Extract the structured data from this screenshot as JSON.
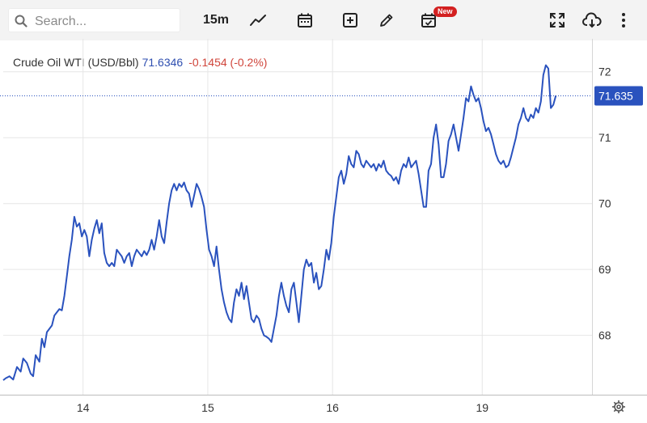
{
  "toolbar": {
    "search_placeholder": "Search...",
    "interval": "15m",
    "new_badge": "New",
    "icons": [
      "search-icon",
      "line-chart-icon",
      "calendar-icon",
      "plus-box-icon",
      "pencil-icon",
      "calendar-check-icon",
      "fullscreen-icon",
      "cloud-download-icon",
      "more-vertical-icon",
      "gear-icon"
    ]
  },
  "legend": {
    "symbol": "Crude Oil WTI (USD/Bbl)",
    "value": "71.6346",
    "change": "-0.1454 (-0.2%)"
  },
  "colors": {
    "line": "#2a52be",
    "label_bg": "#2a52be",
    "change": "#d0453b",
    "grid": "#e6e6e6"
  },
  "chart_data": {
    "type": "line",
    "x_ticks": [
      {
        "label": "14",
        "x": 1.0
      },
      {
        "label": "15",
        "x": 2.0
      },
      {
        "label": "16",
        "x": 3.0
      },
      {
        "label": "19",
        "x": 4.2
      }
    ],
    "y_ticks": [
      68,
      69,
      70,
      71,
      72
    ],
    "ylim": [
      67.1,
      72.5
    ],
    "xlim": [
      0.36,
      5.08
    ],
    "last_value_label": "71.635",
    "last_value": 71.635,
    "series": [
      {
        "points": [
          [
            0.36,
            67.32
          ],
          [
            0.38,
            67.35
          ],
          [
            0.41,
            67.38
          ],
          [
            0.44,
            67.33
          ],
          [
            0.47,
            67.52
          ],
          [
            0.5,
            67.45
          ],
          [
            0.52,
            67.65
          ],
          [
            0.55,
            67.58
          ],
          [
            0.58,
            67.42
          ],
          [
            0.6,
            67.38
          ],
          [
            0.62,
            67.7
          ],
          [
            0.65,
            67.6
          ],
          [
            0.67,
            67.95
          ],
          [
            0.69,
            67.82
          ],
          [
            0.71,
            68.05
          ],
          [
            0.73,
            68.1
          ],
          [
            0.75,
            68.15
          ],
          [
            0.77,
            68.3
          ],
          [
            0.79,
            68.35
          ],
          [
            0.81,
            68.4
          ],
          [
            0.83,
            68.38
          ],
          [
            0.85,
            68.6
          ],
          [
            0.87,
            68.9
          ],
          [
            0.89,
            69.2
          ],
          [
            0.91,
            69.45
          ],
          [
            0.93,
            69.8
          ],
          [
            0.95,
            69.65
          ],
          [
            0.97,
            69.7
          ],
          [
            0.99,
            69.5
          ],
          [
            1.01,
            69.6
          ],
          [
            1.03,
            69.5
          ],
          [
            1.05,
            69.2
          ],
          [
            1.07,
            69.45
          ],
          [
            1.09,
            69.62
          ],
          [
            1.11,
            69.75
          ],
          [
            1.13,
            69.55
          ],
          [
            1.15,
            69.7
          ],
          [
            1.17,
            69.25
          ],
          [
            1.19,
            69.1
          ],
          [
            1.21,
            69.05
          ],
          [
            1.23,
            69.1
          ],
          [
            1.25,
            69.05
          ],
          [
            1.27,
            69.3
          ],
          [
            1.29,
            69.25
          ],
          [
            1.31,
            69.2
          ],
          [
            1.33,
            69.1
          ],
          [
            1.35,
            69.2
          ],
          [
            1.37,
            69.25
          ],
          [
            1.39,
            69.05
          ],
          [
            1.41,
            69.2
          ],
          [
            1.43,
            69.3
          ],
          [
            1.45,
            69.25
          ],
          [
            1.47,
            69.2
          ],
          [
            1.49,
            69.28
          ],
          [
            1.51,
            69.22
          ],
          [
            1.53,
            69.3
          ],
          [
            1.55,
            69.45
          ],
          [
            1.57,
            69.3
          ],
          [
            1.59,
            69.5
          ],
          [
            1.61,
            69.75
          ],
          [
            1.63,
            69.5
          ],
          [
            1.65,
            69.4
          ],
          [
            1.67,
            69.72
          ],
          [
            1.69,
            70.0
          ],
          [
            1.71,
            70.2
          ],
          [
            1.73,
            70.3
          ],
          [
            1.75,
            70.2
          ],
          [
            1.77,
            70.3
          ],
          [
            1.79,
            70.25
          ],
          [
            1.81,
            70.32
          ],
          [
            1.83,
            70.2
          ],
          [
            1.85,
            70.15
          ],
          [
            1.87,
            69.95
          ],
          [
            1.89,
            70.12
          ],
          [
            1.91,
            70.3
          ],
          [
            1.93,
            70.22
          ],
          [
            1.95,
            70.1
          ],
          [
            1.97,
            69.95
          ],
          [
            1.99,
            69.6
          ],
          [
            2.01,
            69.3
          ],
          [
            2.03,
            69.2
          ],
          [
            2.05,
            69.05
          ],
          [
            2.07,
            69.35
          ],
          [
            2.09,
            69.0
          ],
          [
            2.11,
            68.7
          ],
          [
            2.13,
            68.5
          ],
          [
            2.15,
            68.35
          ],
          [
            2.17,
            68.25
          ],
          [
            2.19,
            68.2
          ],
          [
            2.21,
            68.5
          ],
          [
            2.23,
            68.7
          ],
          [
            2.25,
            68.6
          ],
          [
            2.27,
            68.8
          ],
          [
            2.29,
            68.55
          ],
          [
            2.31,
            68.75
          ],
          [
            2.33,
            68.5
          ],
          [
            2.35,
            68.25
          ],
          [
            2.37,
            68.2
          ],
          [
            2.39,
            68.3
          ],
          [
            2.41,
            68.25
          ],
          [
            2.43,
            68.1
          ],
          [
            2.45,
            68.0
          ],
          [
            2.47,
            67.98
          ],
          [
            2.49,
            67.95
          ],
          [
            2.51,
            67.9
          ],
          [
            2.53,
            68.1
          ],
          [
            2.55,
            68.3
          ],
          [
            2.57,
            68.6
          ],
          [
            2.59,
            68.8
          ],
          [
            2.61,
            68.6
          ],
          [
            2.63,
            68.45
          ],
          [
            2.65,
            68.35
          ],
          [
            2.67,
            68.7
          ],
          [
            2.69,
            68.8
          ],
          [
            2.71,
            68.5
          ],
          [
            2.73,
            68.2
          ],
          [
            2.75,
            68.6
          ],
          [
            2.77,
            69.0
          ],
          [
            2.79,
            69.15
          ],
          [
            2.81,
            69.05
          ],
          [
            2.83,
            69.1
          ],
          [
            2.85,
            68.8
          ],
          [
            2.87,
            68.95
          ],
          [
            2.89,
            68.7
          ],
          [
            2.91,
            68.75
          ],
          [
            2.93,
            69.0
          ],
          [
            2.95,
            69.3
          ],
          [
            2.97,
            69.15
          ],
          [
            2.99,
            69.4
          ],
          [
            3.01,
            69.8
          ],
          [
            3.03,
            70.1
          ],
          [
            3.05,
            70.4
          ],
          [
            3.07,
            70.5
          ],
          [
            3.09,
            70.3
          ],
          [
            3.11,
            70.45
          ],
          [
            3.13,
            70.72
          ],
          [
            3.15,
            70.6
          ],
          [
            3.17,
            70.55
          ],
          [
            3.19,
            70.8
          ],
          [
            3.21,
            70.75
          ],
          [
            3.23,
            70.6
          ],
          [
            3.25,
            70.55
          ],
          [
            3.27,
            70.65
          ],
          [
            3.29,
            70.6
          ],
          [
            3.31,
            70.55
          ],
          [
            3.33,
            70.6
          ],
          [
            3.35,
            70.5
          ],
          [
            3.37,
            70.6
          ],
          [
            3.39,
            70.55
          ],
          [
            3.41,
            70.65
          ],
          [
            3.43,
            70.5
          ],
          [
            3.45,
            70.45
          ],
          [
            3.47,
            70.42
          ],
          [
            3.49,
            70.35
          ],
          [
            3.51,
            70.4
          ],
          [
            3.53,
            70.3
          ],
          [
            3.55,
            70.5
          ],
          [
            3.57,
            70.6
          ],
          [
            3.59,
            70.55
          ],
          [
            3.61,
            70.7
          ],
          [
            3.63,
            70.55
          ],
          [
            3.65,
            70.6
          ],
          [
            3.67,
            70.65
          ],
          [
            3.69,
            70.45
          ],
          [
            3.71,
            70.2
          ],
          [
            3.73,
            69.95
          ],
          [
            3.75,
            69.95
          ],
          [
            3.77,
            70.5
          ],
          [
            3.79,
            70.6
          ],
          [
            3.81,
            71.0
          ],
          [
            3.83,
            71.2
          ],
          [
            3.85,
            70.9
          ],
          [
            3.87,
            70.4
          ],
          [
            3.89,
            70.4
          ],
          [
            3.91,
            70.6
          ],
          [
            3.93,
            70.95
          ],
          [
            3.95,
            71.05
          ],
          [
            3.97,
            71.2
          ],
          [
            3.99,
            71.0
          ],
          [
            4.01,
            70.8
          ],
          [
            4.03,
            71.05
          ],
          [
            4.05,
            71.3
          ],
          [
            4.07,
            71.6
          ],
          [
            4.09,
            71.55
          ],
          [
            4.11,
            71.78
          ],
          [
            4.13,
            71.65
          ],
          [
            4.15,
            71.55
          ],
          [
            4.17,
            71.6
          ],
          [
            4.19,
            71.45
          ],
          [
            4.21,
            71.25
          ],
          [
            4.23,
            71.1
          ],
          [
            4.25,
            71.15
          ],
          [
            4.27,
            71.05
          ],
          [
            4.29,
            70.9
          ],
          [
            4.31,
            70.75
          ],
          [
            4.33,
            70.65
          ],
          [
            4.35,
            70.6
          ],
          [
            4.37,
            70.65
          ],
          [
            4.39,
            70.55
          ],
          [
            4.41,
            70.58
          ],
          [
            4.43,
            70.7
          ],
          [
            4.45,
            70.85
          ],
          [
            4.47,
            71.0
          ],
          [
            4.49,
            71.2
          ],
          [
            4.51,
            71.3
          ],
          [
            4.53,
            71.45
          ],
          [
            4.55,
            71.3
          ],
          [
            4.57,
            71.25
          ],
          [
            4.59,
            71.35
          ],
          [
            4.61,
            71.3
          ],
          [
            4.63,
            71.45
          ],
          [
            4.65,
            71.38
          ],
          [
            4.67,
            71.55
          ],
          [
            4.69,
            71.95
          ],
          [
            4.71,
            72.1
          ],
          [
            4.73,
            72.05
          ],
          [
            4.75,
            71.45
          ],
          [
            4.77,
            71.5
          ],
          [
            4.79,
            71.64
          ]
        ]
      }
    ]
  }
}
